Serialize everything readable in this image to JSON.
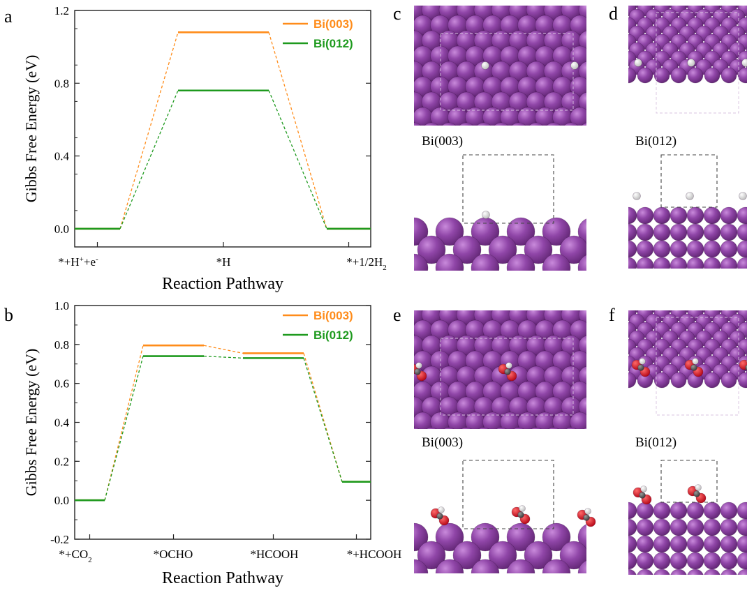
{
  "panel_letters": {
    "a": "a",
    "b": "b",
    "c": "c",
    "d": "d",
    "e": "e",
    "f": "f"
  },
  "slab_labels": {
    "c": "Bi(003)",
    "d": "Bi(012)",
    "e": "Bi(003)",
    "f": "Bi(012)"
  },
  "colors": {
    "bi_003": "#FF8C1A",
    "bi_012": "#1E9A1E",
    "bi_atom": "#8B3FA0",
    "bi_atom_light": "#B06CC4",
    "h_atom": "#F2F2F2",
    "o_atom": "#E0101A",
    "c_atom": "#555555"
  },
  "chart_data": [
    {
      "type": "line",
      "title": "",
      "xlabel": "Reaction Pathway",
      "ylabel": "Gibbs Free Energy (eV)",
      "ylim": [
        -0.1,
        1.2
      ],
      "yticks": [
        "0.0",
        "0.4",
        "0.8",
        "1.2"
      ],
      "categories": [
        {
          "base": "*+H",
          "sup": "+",
          "after": "+e",
          "sup2": "-",
          "sub": "",
          "tail": ""
        },
        {
          "base": "*H",
          "sup": "",
          "after": "",
          "sup2": "",
          "sub": "",
          "tail": ""
        },
        {
          "base": "*+1/2H",
          "sup": "",
          "after": "",
          "sup2": "",
          "sub": "2",
          "tail": ""
        }
      ],
      "series": [
        {
          "name": "Bi(003)",
          "values": [
            0.0,
            1.08,
            0.0
          ]
        },
        {
          "name": "Bi(012)",
          "values": [
            0.0,
            0.76,
            0.0
          ]
        }
      ],
      "legend": "top-right",
      "grid": false
    },
    {
      "type": "line",
      "title": "",
      "xlabel": "Reaction Pathway",
      "ylabel": "Gibbs Free Energy (eV)",
      "ylim": [
        -0.2,
        1.0
      ],
      "yticks": [
        "-0.2",
        "0.0",
        "0.2",
        "0.4",
        "0.6",
        "0.8",
        "1.0"
      ],
      "categories": [
        {
          "base": "*+CO",
          "sup": "",
          "after": "",
          "sup2": "",
          "sub": "2",
          "tail": ""
        },
        {
          "base": "*OCHO",
          "sup": "",
          "after": "",
          "sup2": "",
          "sub": "",
          "tail": ""
        },
        {
          "base": "*HCOOH",
          "sup": "",
          "after": "",
          "sup2": "",
          "sub": "",
          "tail": ""
        },
        {
          "base": "*+HCOOH",
          "sup": "",
          "after": "",
          "sup2": "",
          "sub": "",
          "tail": ""
        }
      ],
      "series": [
        {
          "name": "Bi(003)",
          "values": [
            0.0,
            0.795,
            0.755,
            0.095
          ]
        },
        {
          "name": "Bi(012)",
          "values": [
            0.0,
            0.74,
            0.73,
            0.095
          ]
        }
      ],
      "legend": "top-right",
      "grid": false
    }
  ]
}
